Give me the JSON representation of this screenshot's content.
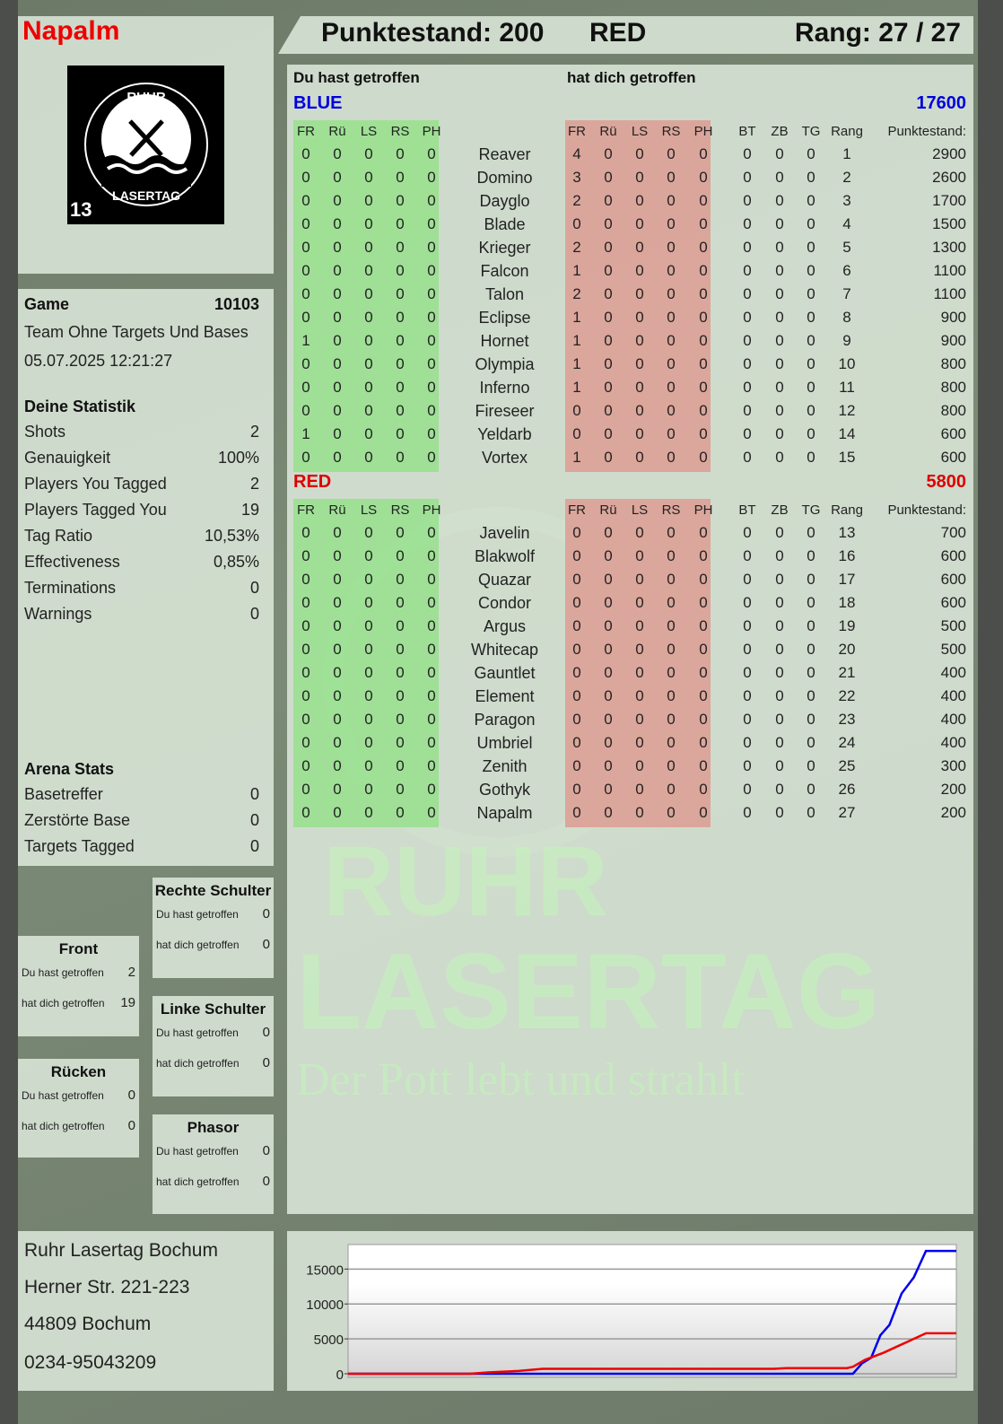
{
  "player": {
    "name": "Napalm",
    "score_label": "Punktestand: 200",
    "team": "RED",
    "rank_label": "Rang: 27 / 27"
  },
  "logo": {
    "top_text": "RUHR",
    "bottom_text": "LASERTAG",
    "badge": "13"
  },
  "watermark": {
    "line1": "RUHR",
    "line2": "LASERTAG",
    "slogan": "Der Pott lebt und strahlt"
  },
  "game": {
    "label": "Game",
    "id": "10103",
    "mode": "Team Ohne Targets Und Bases",
    "datetime": "05.07.2025 12:21:27",
    "stats_title": "Deine Statistik",
    "stats": [
      {
        "label": "Shots",
        "value": "2"
      },
      {
        "label": "Genauigkeit",
        "value": "100%"
      },
      {
        "label": "Players You Tagged",
        "value": "2"
      },
      {
        "label": "Players Tagged You",
        "value": "19"
      },
      {
        "label": "Tag Ratio",
        "value": "10,53%"
      },
      {
        "label": "Effectiveness",
        "value": "0,85%"
      },
      {
        "label": "Terminations",
        "value": "0"
      },
      {
        "label": "Warnings",
        "value": "0"
      }
    ],
    "arena_title": "Arena Stats",
    "arena": [
      {
        "label": "Basetreffer",
        "value": "0"
      },
      {
        "label": "Zerstörte Base",
        "value": "0"
      },
      {
        "label": "Targets Tagged",
        "value": "0"
      }
    ]
  },
  "body_parts": [
    {
      "title": "Front",
      "hit_label": "Du hast getroffen",
      "hit": "2",
      "hitby_label": "hat dich getroffen",
      "hitby": "19"
    },
    {
      "title": "Rücken",
      "hit_label": "Du hast getroffen",
      "hit": "0",
      "hitby_label": "hat dich getroffen",
      "hitby": "0"
    },
    {
      "title": "Rechte Schulter",
      "hit_label": "Du hast getroffen",
      "hit": "0",
      "hitby_label": "hat dich getroffen",
      "hitby": "0"
    },
    {
      "title": "Linke Schulter",
      "hit_label": "Du hast getroffen",
      "hit": "0",
      "hitby_label": "hat dich getroffen",
      "hitby": "0"
    },
    {
      "title": "Phasor",
      "hit_label": "Du hast getroffen",
      "hit": "0",
      "hitby_label": "hat dich getroffen",
      "hitby": "0"
    }
  ],
  "address": [
    "Ruhr Lasertag Bochum",
    "Herner Str. 221-223",
    "44809 Bochum",
    "0234-95043209"
  ],
  "table": {
    "you_hit_label": "Du hast getroffen",
    "hit_you_label": "hat dich getroffen",
    "hit_cols": [
      "FR",
      "Rü",
      "LS",
      "RS",
      "PH"
    ],
    "extra_cols": [
      "BT",
      "ZB",
      "TG",
      "Rang",
      "Punktestand:"
    ],
    "teams": [
      {
        "name": "BLUE",
        "score": "17600",
        "color": "#0000dd",
        "players": [
          {
            "name": "Reaver",
            "hit": [
              0,
              0,
              0,
              0,
              0
            ],
            "hitby": [
              4,
              0,
              0,
              0,
              0
            ],
            "extra": [
              0,
              0,
              0,
              1,
              2900
            ]
          },
          {
            "name": "Domino",
            "hit": [
              0,
              0,
              0,
              0,
              0
            ],
            "hitby": [
              3,
              0,
              0,
              0,
              0
            ],
            "extra": [
              0,
              0,
              0,
              2,
              2600
            ]
          },
          {
            "name": "Dayglo",
            "hit": [
              0,
              0,
              0,
              0,
              0
            ],
            "hitby": [
              2,
              0,
              0,
              0,
              0
            ],
            "extra": [
              0,
              0,
              0,
              3,
              1700
            ]
          },
          {
            "name": "Blade",
            "hit": [
              0,
              0,
              0,
              0,
              0
            ],
            "hitby": [
              0,
              0,
              0,
              0,
              0
            ],
            "extra": [
              0,
              0,
              0,
              4,
              1500
            ]
          },
          {
            "name": "Krieger",
            "hit": [
              0,
              0,
              0,
              0,
              0
            ],
            "hitby": [
              2,
              0,
              0,
              0,
              0
            ],
            "extra": [
              0,
              0,
              0,
              5,
              1300
            ]
          },
          {
            "name": "Falcon",
            "hit": [
              0,
              0,
              0,
              0,
              0
            ],
            "hitby": [
              1,
              0,
              0,
              0,
              0
            ],
            "extra": [
              0,
              0,
              0,
              6,
              1100
            ]
          },
          {
            "name": "Talon",
            "hit": [
              0,
              0,
              0,
              0,
              0
            ],
            "hitby": [
              2,
              0,
              0,
              0,
              0
            ],
            "extra": [
              0,
              0,
              0,
              7,
              1100
            ]
          },
          {
            "name": "Eclipse",
            "hit": [
              0,
              0,
              0,
              0,
              0
            ],
            "hitby": [
              1,
              0,
              0,
              0,
              0
            ],
            "extra": [
              0,
              0,
              0,
              8,
              900
            ]
          },
          {
            "name": "Hornet",
            "hit": [
              1,
              0,
              0,
              0,
              0
            ],
            "hitby": [
              1,
              0,
              0,
              0,
              0
            ],
            "extra": [
              0,
              0,
              0,
              9,
              900
            ]
          },
          {
            "name": "Olympia",
            "hit": [
              0,
              0,
              0,
              0,
              0
            ],
            "hitby": [
              1,
              0,
              0,
              0,
              0
            ],
            "extra": [
              0,
              0,
              0,
              10,
              800
            ]
          },
          {
            "name": "Inferno",
            "hit": [
              0,
              0,
              0,
              0,
              0
            ],
            "hitby": [
              1,
              0,
              0,
              0,
              0
            ],
            "extra": [
              0,
              0,
              0,
              11,
              800
            ]
          },
          {
            "name": "Fireseer",
            "hit": [
              0,
              0,
              0,
              0,
              0
            ],
            "hitby": [
              0,
              0,
              0,
              0,
              0
            ],
            "extra": [
              0,
              0,
              0,
              12,
              800
            ]
          },
          {
            "name": "Yeldarb",
            "hit": [
              1,
              0,
              0,
              0,
              0
            ],
            "hitby": [
              0,
              0,
              0,
              0,
              0
            ],
            "extra": [
              0,
              0,
              0,
              14,
              600
            ]
          },
          {
            "name": "Vortex",
            "hit": [
              0,
              0,
              0,
              0,
              0
            ],
            "hitby": [
              1,
              0,
              0,
              0,
              0
            ],
            "extra": [
              0,
              0,
              0,
              15,
              600
            ]
          }
        ]
      },
      {
        "name": "RED",
        "score": "5800",
        "color": "#dd0000",
        "players": [
          {
            "name": "Javelin",
            "hit": [
              0,
              0,
              0,
              0,
              0
            ],
            "hitby": [
              0,
              0,
              0,
              0,
              0
            ],
            "extra": [
              0,
              0,
              0,
              13,
              700
            ]
          },
          {
            "name": "Blakwolf",
            "hit": [
              0,
              0,
              0,
              0,
              0
            ],
            "hitby": [
              0,
              0,
              0,
              0,
              0
            ],
            "extra": [
              0,
              0,
              0,
              16,
              600
            ]
          },
          {
            "name": "Quazar",
            "hit": [
              0,
              0,
              0,
              0,
              0
            ],
            "hitby": [
              0,
              0,
              0,
              0,
              0
            ],
            "extra": [
              0,
              0,
              0,
              17,
              600
            ]
          },
          {
            "name": "Condor",
            "hit": [
              0,
              0,
              0,
              0,
              0
            ],
            "hitby": [
              0,
              0,
              0,
              0,
              0
            ],
            "extra": [
              0,
              0,
              0,
              18,
              600
            ]
          },
          {
            "name": "Argus",
            "hit": [
              0,
              0,
              0,
              0,
              0
            ],
            "hitby": [
              0,
              0,
              0,
              0,
              0
            ],
            "extra": [
              0,
              0,
              0,
              19,
              500
            ]
          },
          {
            "name": "Whitecap",
            "hit": [
              0,
              0,
              0,
              0,
              0
            ],
            "hitby": [
              0,
              0,
              0,
              0,
              0
            ],
            "extra": [
              0,
              0,
              0,
              20,
              500
            ]
          },
          {
            "name": "Gauntlet",
            "hit": [
              0,
              0,
              0,
              0,
              0
            ],
            "hitby": [
              0,
              0,
              0,
              0,
              0
            ],
            "extra": [
              0,
              0,
              0,
              21,
              400
            ]
          },
          {
            "name": "Element",
            "hit": [
              0,
              0,
              0,
              0,
              0
            ],
            "hitby": [
              0,
              0,
              0,
              0,
              0
            ],
            "extra": [
              0,
              0,
              0,
              22,
              400
            ]
          },
          {
            "name": "Paragon",
            "hit": [
              0,
              0,
              0,
              0,
              0
            ],
            "hitby": [
              0,
              0,
              0,
              0,
              0
            ],
            "extra": [
              0,
              0,
              0,
              23,
              400
            ]
          },
          {
            "name": "Umbriel",
            "hit": [
              0,
              0,
              0,
              0,
              0
            ],
            "hitby": [
              0,
              0,
              0,
              0,
              0
            ],
            "extra": [
              0,
              0,
              0,
              24,
              400
            ]
          },
          {
            "name": "Zenith",
            "hit": [
              0,
              0,
              0,
              0,
              0
            ],
            "hitby": [
              0,
              0,
              0,
              0,
              0
            ],
            "extra": [
              0,
              0,
              0,
              25,
              300
            ]
          },
          {
            "name": "Gothyk",
            "hit": [
              0,
              0,
              0,
              0,
              0
            ],
            "hitby": [
              0,
              0,
              0,
              0,
              0
            ],
            "extra": [
              0,
              0,
              0,
              26,
              200
            ]
          },
          {
            "name": "Napalm",
            "hit": [
              0,
              0,
              0,
              0,
              0
            ],
            "hitby": [
              0,
              0,
              0,
              0,
              0
            ],
            "extra": [
              0,
              0,
              0,
              27,
              200
            ]
          }
        ]
      }
    ]
  },
  "chart_data": {
    "type": "line",
    "ylim": [
      0,
      18000
    ],
    "yticks": [
      0,
      5000,
      10000,
      15000
    ],
    "grid": true,
    "series": [
      {
        "color": "#0000ee",
        "points": [
          [
            0,
            0
          ],
          [
            10,
            0
          ],
          [
            20,
            0
          ],
          [
            30,
            0
          ],
          [
            40,
            0
          ],
          [
            50,
            0
          ],
          [
            60,
            0
          ],
          [
            70,
            0
          ],
          [
            80,
            0
          ],
          [
            83,
            0
          ],
          [
            84.5,
            1500
          ],
          [
            86,
            2300
          ],
          [
            87.5,
            5500
          ],
          [
            89,
            7000
          ],
          [
            91,
            11500
          ],
          [
            93,
            13800
          ],
          [
            95,
            17600
          ],
          [
            100,
            17600
          ]
        ]
      },
      {
        "color": "#ee0000",
        "points": [
          [
            0,
            0
          ],
          [
            20,
            0
          ],
          [
            23,
            200
          ],
          [
            28,
            400
          ],
          [
            32,
            700
          ],
          [
            50,
            700
          ],
          [
            70,
            700
          ],
          [
            72,
            800
          ],
          [
            82,
            800
          ],
          [
            83,
            1000
          ],
          [
            85,
            2000
          ],
          [
            88,
            3000
          ],
          [
            90,
            3800
          ],
          [
            93,
            5000
          ],
          [
            95,
            5800
          ],
          [
            100,
            5800
          ]
        ]
      }
    ]
  }
}
